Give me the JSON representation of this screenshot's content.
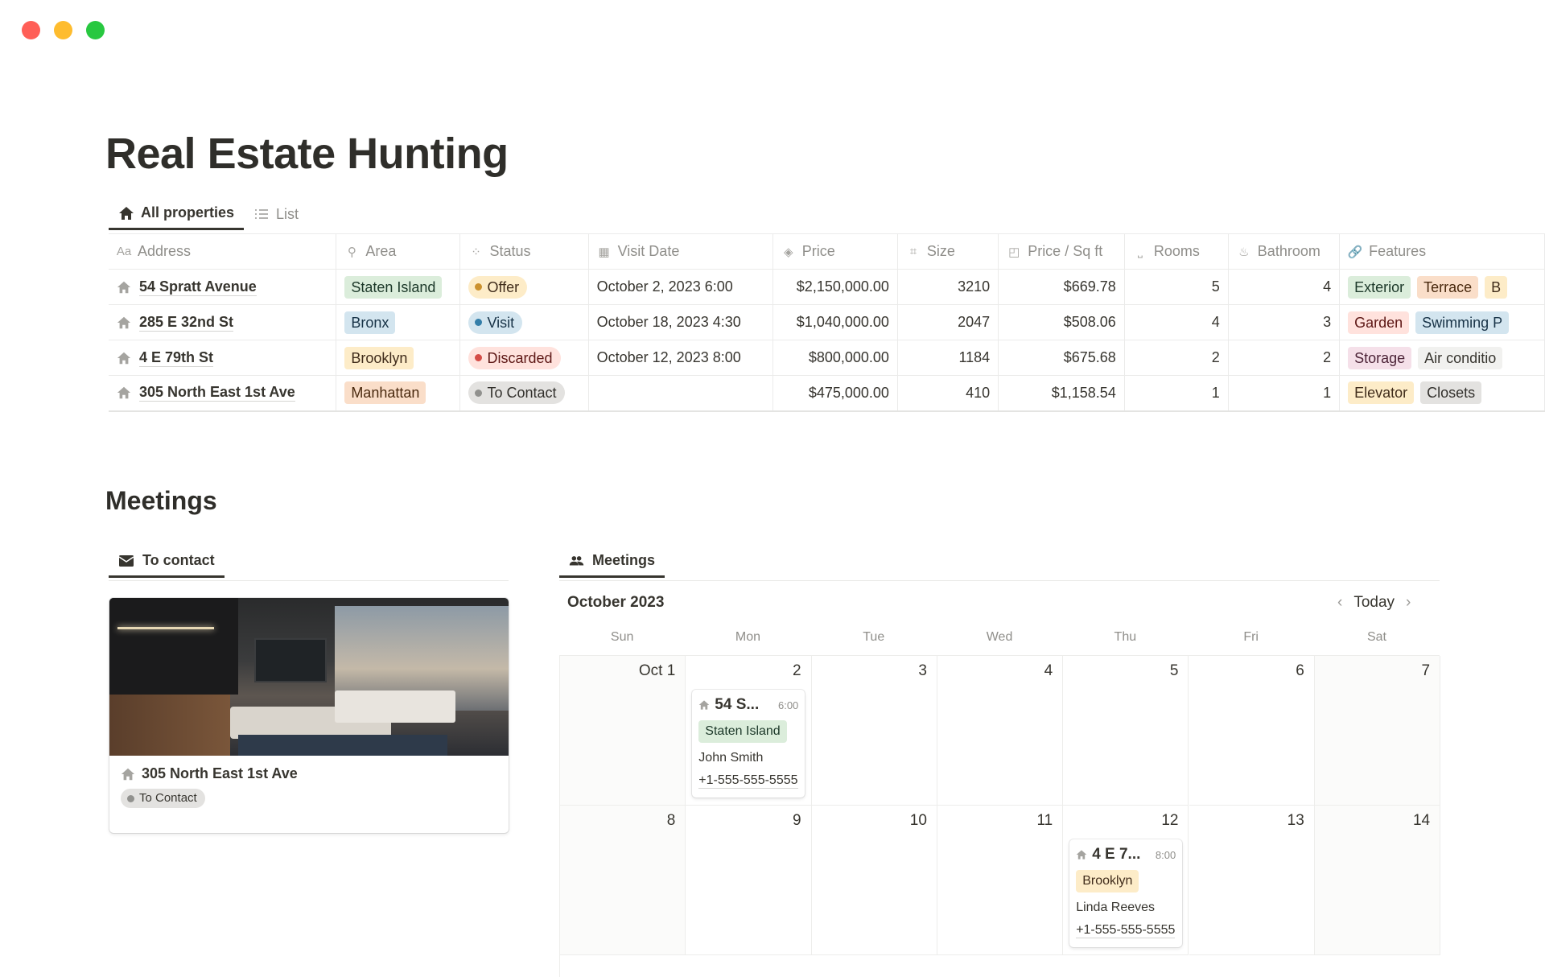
{
  "window": {
    "controls": [
      {
        "name": "close",
        "color": "#ff5f57"
      },
      {
        "name": "minimize",
        "color": "#febc2e"
      },
      {
        "name": "zoom",
        "color": "#28c840"
      }
    ]
  },
  "page": {
    "title": "Real Estate Hunting"
  },
  "views": [
    {
      "label": "All properties",
      "icon": "house-icon",
      "active": true
    },
    {
      "label": "List",
      "icon": "list-icon",
      "active": false
    }
  ],
  "table": {
    "columns": [
      {
        "label": "Address",
        "icon": "Aa"
      },
      {
        "label": "Area",
        "icon": "pin"
      },
      {
        "label": "Status",
        "icon": "spinner"
      },
      {
        "label": "Visit Date",
        "icon": "calendar"
      },
      {
        "label": "Price",
        "icon": "tag"
      },
      {
        "label": "Size",
        "icon": "crop"
      },
      {
        "label": "Price / Sq ft",
        "icon": "formula"
      },
      {
        "label": "Rooms",
        "icon": "bed"
      },
      {
        "label": "Bathroom",
        "icon": "bath"
      },
      {
        "label": "Features",
        "icon": "link"
      }
    ],
    "rows": [
      {
        "address": "54 Spratt Avenue",
        "area": {
          "label": "Staten Island",
          "color": "green"
        },
        "status": {
          "label": "Offer",
          "color": "yellow"
        },
        "visit_date": "October 2, 2023 6:00",
        "price": "$2,150,000.00",
        "size": "3210",
        "price_sqft": "$669.78",
        "rooms": "5",
        "bathroom": "4",
        "features": [
          {
            "label": "Exterior",
            "color": "green"
          },
          {
            "label": "Terrace",
            "color": "orange"
          },
          {
            "label": "B",
            "color": "yellow"
          }
        ]
      },
      {
        "address": "285 E 32nd St",
        "area": {
          "label": "Bronx",
          "color": "blue"
        },
        "status": {
          "label": "Visit",
          "color": "blue"
        },
        "visit_date": "October 18, 2023 4:30",
        "price": "$1,040,000.00",
        "size": "2047",
        "price_sqft": "$508.06",
        "rooms": "4",
        "bathroom": "3",
        "features": [
          {
            "label": "Garden",
            "color": "red"
          },
          {
            "label": "Swimming P",
            "color": "blue"
          }
        ]
      },
      {
        "address": "4 E 79th St",
        "area": {
          "label": "Brooklyn",
          "color": "yellow"
        },
        "status": {
          "label": "Discarded",
          "color": "red"
        },
        "visit_date": "October 12, 2023 8:00",
        "price": "$800,000.00",
        "size": "1184",
        "price_sqft": "$675.68",
        "rooms": "2",
        "bathroom": "2",
        "features": [
          {
            "label": "Storage",
            "color": "pink"
          },
          {
            "label": "Air conditio",
            "color": "default"
          }
        ]
      },
      {
        "address": "305 North East 1st Ave",
        "area": {
          "label": "Manhattan",
          "color": "orange"
        },
        "status": {
          "label": "To Contact",
          "color": "gray"
        },
        "visit_date": "",
        "price": "$475,000.00",
        "size": "410",
        "price_sqft": "$1,158.54",
        "rooms": "1",
        "bathroom": "1",
        "features": [
          {
            "label": "Elevator",
            "color": "yellow"
          },
          {
            "label": "Closets",
            "color": "gray"
          }
        ]
      }
    ]
  },
  "meetings": {
    "heading": "Meetings",
    "to_contact": {
      "tab": "To contact",
      "card": {
        "title": "305 North East 1st Ave",
        "status": "To Contact"
      }
    },
    "calendar": {
      "tab": "Meetings",
      "month": "October 2023",
      "today": "Today",
      "weekdays": [
        "Sun",
        "Mon",
        "Tue",
        "Wed",
        "Thu",
        "Fri",
        "Sat"
      ],
      "days": [
        "Oct 1",
        "2",
        "3",
        "4",
        "5",
        "6",
        "7",
        "8",
        "9",
        "10",
        "11",
        "12",
        "13",
        "14"
      ],
      "events": [
        {
          "day": "2",
          "title": "54 S...",
          "time": "6:00",
          "area": {
            "label": "Staten Island",
            "color": "green"
          },
          "contact": "John Smith",
          "phone": "+1-555-555-5555"
        },
        {
          "day": "12",
          "title": "4 E 7...",
          "time": "8:00",
          "area": {
            "label": "Brooklyn",
            "color": "yellow"
          },
          "contact": "Linda Reeves",
          "phone": "+1-555-555-5555"
        }
      ]
    }
  },
  "colors": {
    "tags": {
      "green": [
        "#dbeddb",
        "#1c3829"
      ],
      "blue": [
        "#d3e5ef",
        "#183347"
      ],
      "yellow": [
        "#fdecc8",
        "#402c1b"
      ],
      "orange": [
        "#fadec9",
        "#49290e"
      ],
      "red": [
        "#ffe2dd",
        "#5d1715"
      ],
      "pink": [
        "#f5e0e9",
        "#4c2337"
      ],
      "gray": [
        "#e3e2e0",
        "#32302c"
      ],
      "default": [
        "#f1f1ef",
        "#37352f"
      ]
    },
    "status_dots": {
      "yellow": "#cb912f",
      "blue": "#337ea9",
      "red": "#d44c47",
      "gray": "#91918e"
    }
  }
}
